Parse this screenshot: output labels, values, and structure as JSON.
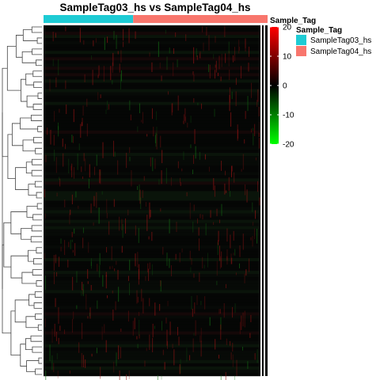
{
  "title": "SampleTag03_hs vs SampleTag04_hs",
  "annotation": {
    "name": "Sample_Tag",
    "groups": [
      {
        "label": "SampleTag03_hs",
        "color": "#1ECBD4"
      },
      {
        "label": "SampleTag04_hs",
        "color": "#F8766D"
      }
    ]
  },
  "colorscale": {
    "ticks": [
      "20",
      "10",
      "0",
      "-10",
      "-20"
    ],
    "stops": [
      {
        "value": 20,
        "color": "#FF0000"
      },
      {
        "value": 0,
        "color": "#000000"
      },
      {
        "value": -20,
        "color": "#00FF00"
      }
    ]
  },
  "chart_data": {
    "type": "heatmap",
    "title": "SampleTag03_hs vs SampleTag04_hs",
    "column_annotation": "Sample_Tag",
    "column_groups": [
      "SampleTag03_hs",
      "SampleTag04_hs"
    ],
    "group_fractions": [
      0.4,
      0.6
    ],
    "row_dendrogram": true,
    "value_range": [
      -20,
      20
    ],
    "legend_placement": "right",
    "dominant_value": 0
  }
}
